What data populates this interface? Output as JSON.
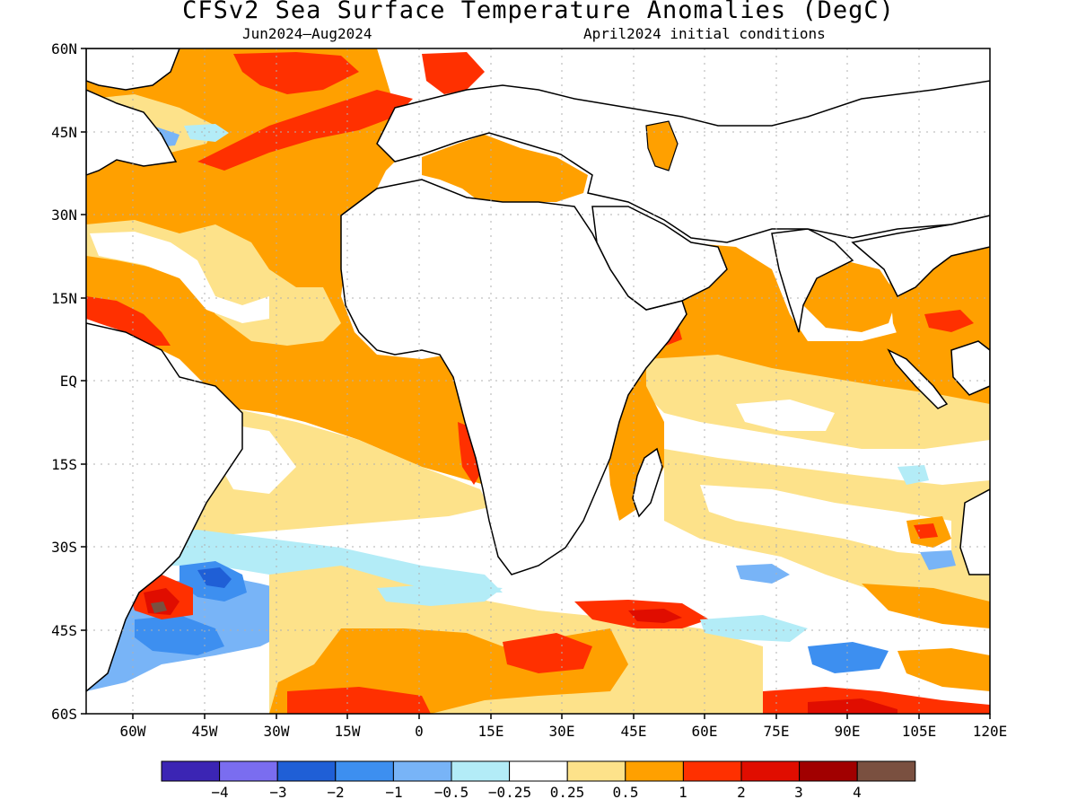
{
  "title": "CFSv2 Sea Surface Temperature Anomalies (DegC)",
  "subtitle_left": "Jun2024–Aug2024",
  "subtitle_right": "April2024 initial conditions",
  "lat_labels": [
    "60N",
    "45N",
    "30N",
    "15N",
    "EQ",
    "15S",
    "30S",
    "45S",
    "60S"
  ],
  "lon_labels": [
    "60W",
    "45W",
    "30W",
    "15W",
    "0",
    "15E",
    "30E",
    "45E",
    "60E",
    "75E",
    "90E",
    "105E",
    "120E"
  ],
  "legend": {
    "colors": [
      "#3b25b4",
      "#7a6df0",
      "#1f5fd6",
      "#3d8ff0",
      "#78b4f7",
      "#b3ecf7",
      "#ffffff",
      "#fde28a",
      "#ffa000",
      "#ff3000",
      "#e00d00",
      "#a10000",
      "#7a5040"
    ],
    "labels": [
      "−4",
      "−3",
      "−2",
      "−1",
      "−0.5",
      "−0.25",
      "0.25",
      "0.5",
      "1",
      "2",
      "3",
      "4"
    ]
  },
  "palette": {
    "strong_warm": "#ff3000",
    "warm": "#ffa000",
    "mild_warm": "#fde28a",
    "neutral": "#ffffff",
    "mild_cool": "#b3ecf7",
    "cool": "#78b4f7",
    "strong_cool": "#3d8ff0",
    "very_cool": "#1f5fd6",
    "hot": "#e00d00",
    "very_hot": "#a10000",
    "extreme": "#7a5040",
    "land": "#ffffff"
  }
}
